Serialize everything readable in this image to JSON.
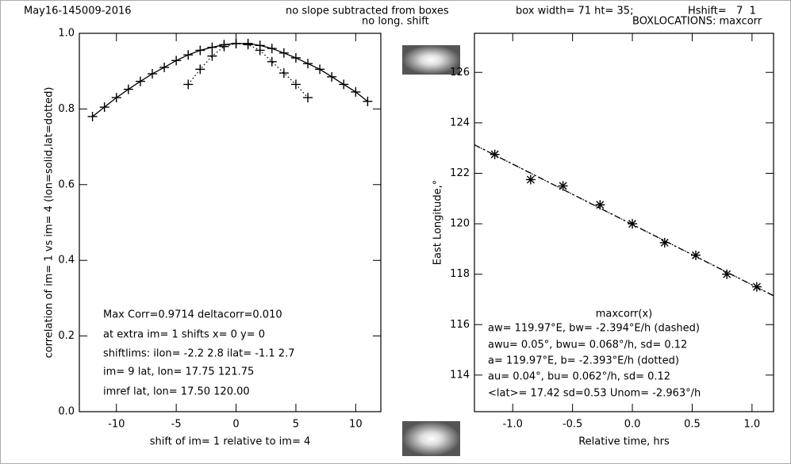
{
  "header": {
    "run": "May16-145009-2016",
    "slope": "no slope subtracted from boxes",
    "shift": "no long. shift",
    "box": "box width= 71 ht= 35;",
    "hshift": "Hshift=   7  1",
    "locations": "BOXLOCATIONS: maxcorr"
  },
  "chart_data": [
    {
      "type": "line",
      "xlabel": "shift of im= 1 relative to im= 4",
      "ylabel": "correlation of im= 1 vs im= 4 (lon=solid,lat=dotted)",
      "xlim": [
        -13.1,
        12.1
      ],
      "ylim": [
        0,
        1
      ],
      "xticks": [
        -10,
        -5,
        0,
        5,
        10
      ],
      "yticks": [
        {
          "value": 0,
          "label": "0.0"
        },
        0.2,
        0.4,
        0.6,
        0.8,
        {
          "value": 1,
          "label": "1.0"
        }
      ],
      "series": [
        {
          "style": "solid",
          "marker": "+",
          "x": [
            -12,
            -11,
            -10,
            -9,
            -8,
            -7,
            -6,
            -5,
            -4,
            -3,
            -2,
            -1,
            0,
            1,
            2,
            3,
            4,
            5,
            6,
            7,
            8,
            9,
            10,
            11
          ],
          "values": [
            0.78,
            0.805,
            0.83,
            0.852,
            0.873,
            0.893,
            0.91,
            0.928,
            0.943,
            0.955,
            0.963,
            0.97,
            0.973,
            0.973,
            0.968,
            0.96,
            0.948,
            0.935,
            0.92,
            0.905,
            0.885,
            0.865,
            0.845,
            0.82
          ]
        },
        {
          "style": "dotted",
          "marker": "+",
          "x": [
            -4,
            -3,
            -2,
            -1,
            0,
            1,
            2,
            3,
            4,
            5,
            6
          ],
          "values": [
            0.865,
            0.905,
            0.94,
            0.965,
            0.973,
            0.97,
            0.955,
            0.925,
            0.895,
            0.865,
            0.83
          ]
        }
      ],
      "annotations": [
        "Max Corr=0.9714 deltacorr=0.010",
        "at extra im= 1 shifts x=   0 y=   0",
        "shiftlims: ilon= -2.2  2.8 ilat= -1.1  2.7",
        "im= 9 lat, lon=    17.75   121.75",
        "imref lat, lon=    17.50   120.00"
      ]
    },
    {
      "type": "scatter",
      "xlabel": "Relative time, hrs",
      "ylabel": "East Longitude,°",
      "xlim": [
        -1.32,
        1.18
      ],
      "ylim": [
        112.55,
        127.55
      ],
      "xticks": [
        {
          "value": -1,
          "label": "-1.0"
        },
        -0.5,
        {
          "value": 0,
          "label": "0.0"
        },
        0.5,
        {
          "value": 1,
          "label": "1.0"
        }
      ],
      "yticks": [
        114,
        116,
        118,
        120,
        122,
        124,
        126
      ],
      "series": [
        {
          "style": "none",
          "marker": "*",
          "x": [
            -1.15,
            -0.85,
            -0.58,
            -0.27,
            0,
            0.27,
            0.53,
            0.79,
            1.04
          ],
          "values": [
            122.75,
            121.75,
            121.5,
            120.75,
            120.0,
            119.25,
            118.75,
            118.0,
            117.5
          ]
        },
        {
          "style": "dashed",
          "marker": "none",
          "x": [
            -1.32,
            1.18
          ],
          "values": [
            123.13,
            117.145
          ]
        },
        {
          "style": "dotted",
          "marker": "none",
          "x": [
            -1.32,
            1.18
          ],
          "values": [
            123.13,
            117.15
          ]
        }
      ],
      "annotations": [
        "maxcorr(x)",
        "aw=  119.97°E, bw= -2.394°E/h (dashed)",
        "awu= 0.05°, bwu= 0.068°/h, sd= 0.12",
        "a=  119.97°E, b= -2.393°E/h (dotted)",
        "au= 0.04°, bu= 0.062°/h, sd= 0.12",
        "<lat>= 17.42 sd=0.53 Unom= -2.963°/h"
      ]
    }
  ]
}
